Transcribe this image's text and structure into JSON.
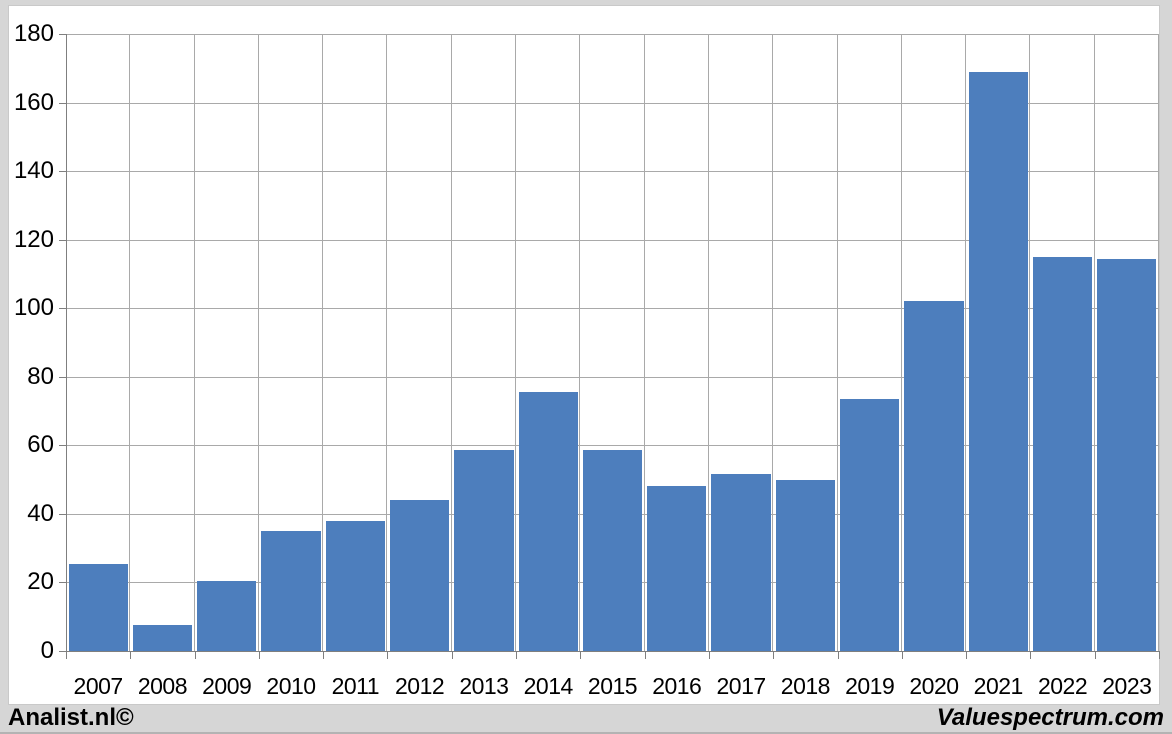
{
  "branding": {
    "left": "Analist.nl©",
    "right": "Valuespectrum.com"
  },
  "chart_data": {
    "type": "bar",
    "title": "",
    "xlabel": "",
    "ylabel": "",
    "categories": [
      "2007",
      "2008",
      "2009",
      "2010",
      "2011",
      "2012",
      "2013",
      "2014",
      "2015",
      "2016",
      "2017",
      "2018",
      "2019",
      "2020",
      "2021",
      "2022",
      "2023"
    ],
    "values": [
      25.5,
      7.5,
      20.5,
      35,
      38,
      44,
      58.5,
      75.5,
      58.5,
      48,
      51.5,
      50,
      73.5,
      102,
      169,
      115,
      114.5
    ],
    "ylim": [
      0,
      180
    ],
    "yticks": [
      0,
      20,
      40,
      60,
      80,
      100,
      120,
      140,
      160,
      180
    ],
    "grid": true,
    "legend_position": "none"
  },
  "colors": {
    "bar": "#4d7ebd",
    "gridline": "#a9a9a9",
    "axis": "#7f7f7f",
    "frame_background": "#d6d6d6",
    "plot_background": "#ffffff",
    "text": "#000000"
  }
}
